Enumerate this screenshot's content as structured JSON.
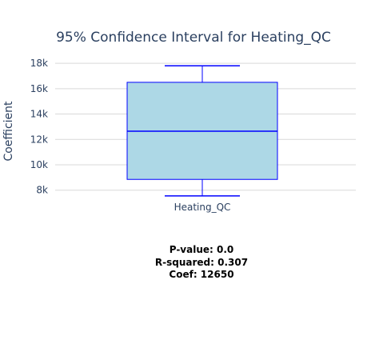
{
  "chart_data": {
    "type": "box",
    "title": "95% Confidence Interval for Heating_QC",
    "xlabel": "",
    "ylabel": "Coefficient",
    "categories": [
      "Heating_QC"
    ],
    "y_ticks": [
      8000,
      10000,
      12000,
      14000,
      16000,
      18000
    ],
    "y_tick_labels": [
      "8k",
      "10k",
      "12k",
      "14k",
      "16k",
      "18k"
    ],
    "ylim": [
      7100,
      18700
    ],
    "grid": true,
    "box": {
      "category": "Heating_QC",
      "min": 7550,
      "q1": 8850,
      "median": 12650,
      "q3": 16500,
      "max": 17800
    },
    "colors": {
      "box_fill": "#add8e6",
      "box_line": "#0000ff",
      "grid": "#d9d9d9",
      "text": "#2a3f5f"
    }
  },
  "stats": {
    "p_value": "P-value: 0.0",
    "r_squared": "R-squared: 0.307",
    "coef": "Coef: 12650"
  }
}
